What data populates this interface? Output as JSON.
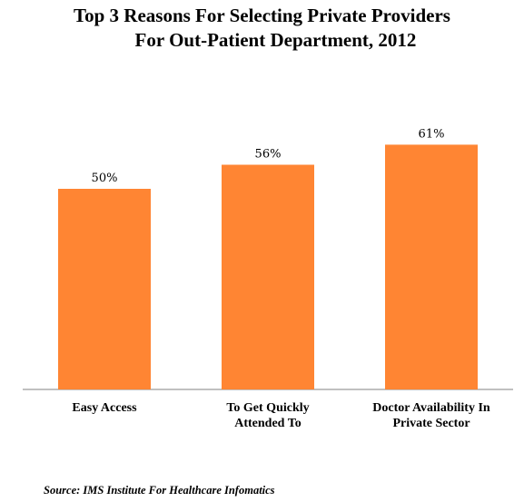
{
  "chart_data": {
    "type": "bar",
    "title_lines": [
      "Top 3 Reasons For Selecting Private Providers",
      "For Out-Patient Department, 2012"
    ],
    "categories": [
      [
        "Easy Access"
      ],
      [
        "To Get Quickly",
        "Attended To"
      ],
      [
        "Doctor Availability In",
        "Private Sector"
      ]
    ],
    "values": [
      50,
      56,
      61
    ],
    "value_labels": [
      "50%",
      "56%",
      "61%"
    ],
    "ylim": [
      0,
      70
    ],
    "grid": false,
    "bar_color": "#FF8533"
  },
  "source": "Source: IMS Institute For Healthcare Infomatics"
}
